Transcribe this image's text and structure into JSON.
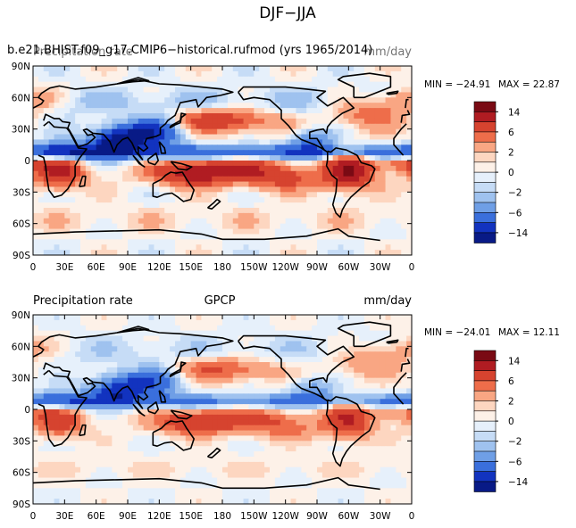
{
  "figure_title": "DJF−JJA",
  "colorbar_levels": [
    "14",
    "6",
    "2",
    "0",
    "−2",
    "−6",
    "−14"
  ],
  "colorbar_colors": [
    "#7a0a14",
    "#b01c22",
    "#d6432f",
    "#ee6d4a",
    "#f9a683",
    "#fdd6c0",
    "#fdf1e8",
    "#e6f0fb",
    "#c6dcf6",
    "#9fc2ef",
    "#6f9fe6",
    "#3a6fdc",
    "#1233bf",
    "#081a86"
  ],
  "chart_data": [
    {
      "type": "heatmap",
      "title_left": "b.e21.BHIST.f09_g17.CMIP6−historical.rufmod (yrs 1965/2014)",
      "title_left_overlay": "Precipitation rate",
      "title_right_overlay": "mm/day",
      "title_center": "",
      "stats": {
        "min_label": "MIN = −24.91",
        "max_label": "MAX =  22.87",
        "min": -24.91,
        "max": 22.87
      },
      "units": "mm/day",
      "x_ticks": [
        "0",
        "30E",
        "60E",
        "90E",
        "120E",
        "150E",
        "180",
        "150W",
        "120W",
        "90W",
        "60W",
        "30W",
        "0"
      ],
      "y_ticks": [
        "90N",
        "60N",
        "30N",
        "0",
        "30S",
        "60S",
        "90S"
      ],
      "xlim": [
        0,
        360
      ],
      "ylim": [
        -90,
        90
      ]
    },
    {
      "type": "heatmap",
      "title_left": "Precipitation rate",
      "title_center": "GPCP",
      "title_right": "mm/day",
      "stats": {
        "min_label": "MIN = −24.01",
        "max_label": "MAX =  12.11",
        "min": -24.01,
        "max": 12.11
      },
      "units": "mm/day",
      "x_ticks": [
        "0",
        "30E",
        "60E",
        "90E",
        "120E",
        "150E",
        "180",
        "150W",
        "120W",
        "90W",
        "60W",
        "30W",
        "0"
      ],
      "y_ticks": [
        "90N",
        "60N",
        "30N",
        "0",
        "30S",
        "60S",
        "90S"
      ],
      "xlim": [
        0,
        360
      ],
      "ylim": [
        -90,
        90
      ]
    }
  ]
}
